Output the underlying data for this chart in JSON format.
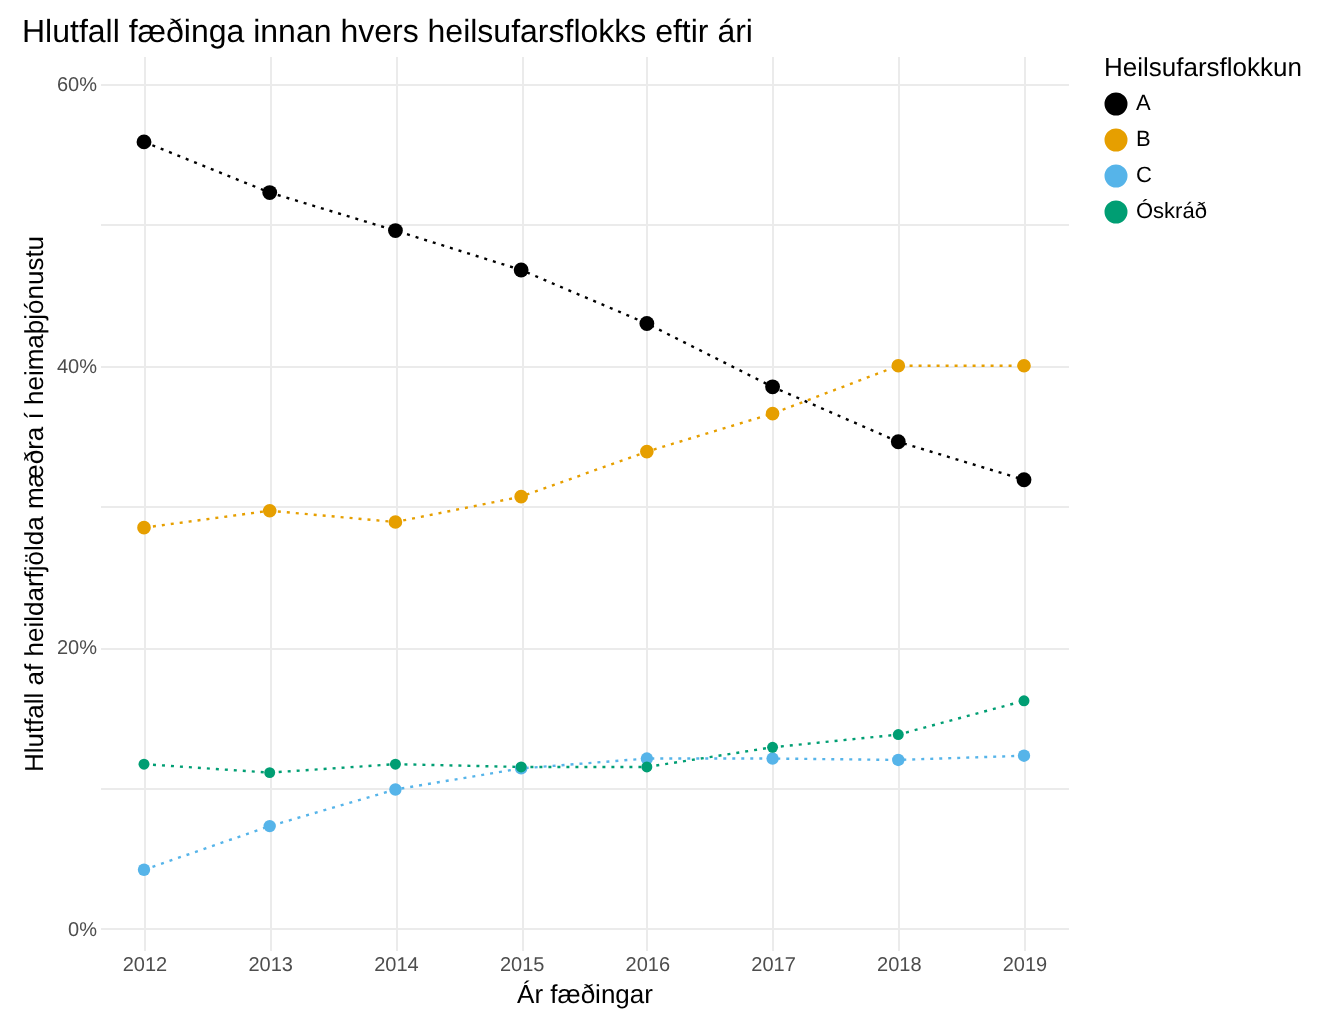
{
  "chart_data": {
    "type": "line",
    "title": "Hlutfall fæðinga innan hvers heilsufarsflokks eftir ári",
    "xlabel": "Ár fæðingar",
    "ylabel": "Hlutfall af heildarfjölda mæðra í heimaþjónustu",
    "legend_title": "Heilsufarsflokkun",
    "x": [
      2012,
      2013,
      2014,
      2015,
      2016,
      2017,
      2018,
      2019
    ],
    "series": [
      {
        "name": "A",
        "color": "#000000",
        "values": [
          55.9,
          52.3,
          49.6,
          46.8,
          43.0,
          38.5,
          34.6,
          31.9
        ]
      },
      {
        "name": "B",
        "color": "#e69f00",
        "values": [
          28.5,
          29.7,
          28.9,
          30.7,
          33.9,
          36.6,
          40.0,
          40.0
        ]
      },
      {
        "name": "C",
        "color": "#56b4e9",
        "values": [
          4.2,
          7.3,
          9.9,
          11.4,
          12.1,
          12.1,
          12.0,
          12.3
        ]
      },
      {
        "name": "Óskráð",
        "color": "#009e73",
        "values": [
          11.7,
          11.1,
          11.7,
          11.5,
          11.5,
          12.9,
          13.8,
          16.2
        ]
      }
    ],
    "xlim": [
      2011.65,
      2019.35
    ],
    "xticks": [
      2012,
      2013,
      2014,
      2015,
      2016,
      2017,
      2018,
      2019
    ],
    "ylim": [
      -1.5,
      62
    ],
    "yticks": [
      {
        "value": 0,
        "label": "0%"
      },
      {
        "value": 10,
        "label": null
      },
      {
        "value": 20,
        "label": "20%"
      },
      {
        "value": 30,
        "label": null
      },
      {
        "value": 40,
        "label": "40%"
      },
      {
        "value": 50,
        "label": null
      },
      {
        "value": 60,
        "label": "60%"
      }
    ],
    "grid": true,
    "legend": "right",
    "marker": "circle",
    "line_style": "dotted"
  }
}
